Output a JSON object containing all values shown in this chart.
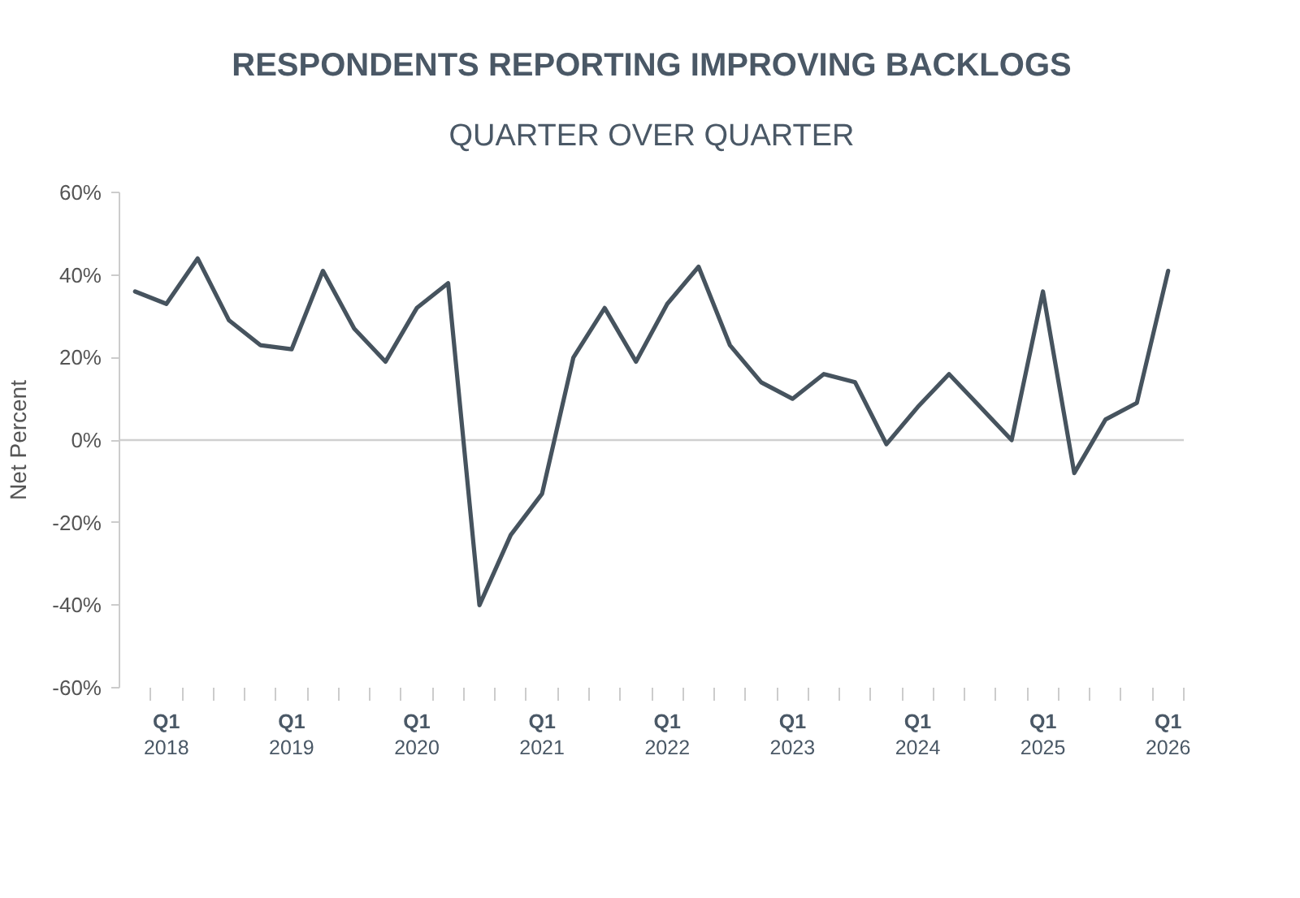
{
  "chart_data": {
    "type": "line",
    "title": "RESPONDENTS REPORTING IMPROVING BACKLOGS",
    "subtitle": "QUARTER OVER QUARTER",
    "ylabel": "Net Percent",
    "categories": [
      null,
      "Q1\n2018",
      null,
      null,
      null,
      "Q1\n2019",
      null,
      null,
      null,
      "Q1\n2020",
      null,
      null,
      null,
      "Q1\n2021",
      null,
      null,
      null,
      "Q1\n2022",
      null,
      null,
      null,
      "Q1\n2023",
      null,
      null,
      null,
      "Q1\n2024",
      null,
      null,
      null,
      "Q1\n2025",
      null,
      null,
      null,
      "Q1\n2026"
    ],
    "series": [
      {
        "color": "#46535e",
        "values": [
          36,
          33,
          44,
          29,
          23,
          22,
          41,
          27,
          19,
          32,
          38,
          -40,
          -23,
          -13,
          20,
          32,
          19,
          33,
          42,
          23,
          14,
          10,
          16,
          14,
          -1,
          8,
          16,
          8,
          0,
          36,
          -8,
          5,
          9,
          41
        ]
      }
    ],
    "ylim": [
      -60,
      60
    ],
    "yticks": [
      {
        "value": -60,
        "label": "-60%"
      },
      {
        "value": -40,
        "label": "-40%"
      },
      {
        "value": -20,
        "label": "-20%"
      },
      {
        "value": 0,
        "label": "0%"
      },
      {
        "value": 20,
        "label": "20%"
      },
      {
        "value": 40,
        "label": "40%"
      },
      {
        "value": 60,
        "label": "60%"
      }
    ],
    "ref_lines": [
      {
        "axis": "y",
        "value": 0,
        "color": "#d0d0d0"
      }
    ],
    "grid": false,
    "marker": "none",
    "line_style": "solid"
  }
}
